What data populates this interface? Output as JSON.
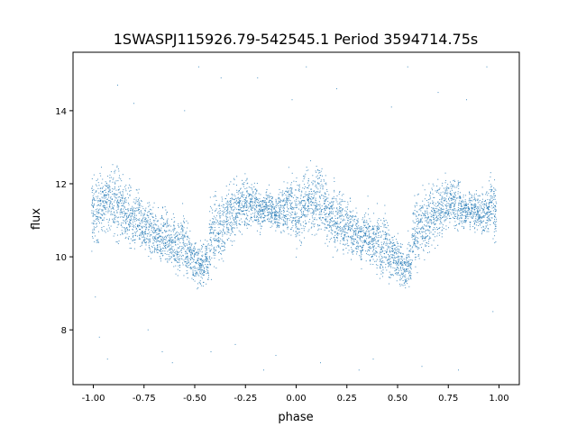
{
  "chart_data": {
    "type": "scatter",
    "title": "1SWASPJ115926.79-542545.1 Period 3594714.75s",
    "xlabel": "phase",
    "ylabel": "flux",
    "xlim": [
      -1.1,
      1.1
    ],
    "ylim": [
      6.5,
      15.6
    ],
    "xticks": [
      "-1.00",
      "-0.75",
      "-0.50",
      "-0.25",
      "0.00",
      "0.25",
      "0.50",
      "0.75",
      "1.00"
    ],
    "xtick_values": [
      -1,
      -0.75,
      -0.5,
      -0.25,
      0,
      0.25,
      0.5,
      0.75,
      1
    ],
    "yticks": [
      "8",
      "10",
      "12",
      "14"
    ],
    "ytick_values": [
      8,
      10,
      12,
      14
    ],
    "grid": false,
    "color": "#1f77b4",
    "repeat_period": 1,
    "streaks_phase_low_high": [
      [
        -1.0,
        9.8,
        12.6
      ],
      [
        -0.98,
        10.0,
        12.5
      ],
      [
        -0.96,
        10.2,
        12.7
      ],
      [
        -0.94,
        10.5,
        12.6
      ],
      [
        -0.92,
        10.2,
        12.8
      ],
      [
        -0.9,
        10.4,
        12.8
      ],
      [
        -0.88,
        10.0,
        13.0
      ],
      [
        -0.86,
        10.3,
        12.5
      ],
      [
        -0.84,
        10.0,
        12.2
      ],
      [
        -0.82,
        9.9,
        12.3
      ],
      [
        -0.8,
        9.8,
        12.0
      ],
      [
        -0.78,
        10.0,
        12.1
      ],
      [
        -0.76,
        9.7,
        11.9
      ],
      [
        -0.74,
        9.8,
        11.8
      ],
      [
        -0.72,
        9.6,
        11.8
      ],
      [
        -0.7,
        9.7,
        11.6
      ],
      [
        -0.68,
        9.5,
        11.5
      ],
      [
        -0.66,
        9.6,
        11.6
      ],
      [
        -0.64,
        9.4,
        11.7
      ],
      [
        -0.62,
        9.5,
        11.4
      ],
      [
        -0.6,
        9.2,
        11.5
      ],
      [
        -0.58,
        9.1,
        11.3
      ],
      [
        -0.56,
        9.2,
        11.8
      ],
      [
        -0.54,
        9.0,
        11.2
      ],
      [
        -0.52,
        9.3,
        10.9
      ],
      [
        -0.5,
        9.0,
        10.8
      ],
      [
        -0.48,
        8.9,
        10.6
      ],
      [
        -0.46,
        9.0,
        10.5
      ],
      [
        -0.44,
        9.0,
        10.8
      ],
      [
        -0.42,
        9.2,
        12.0
      ],
      [
        -0.4,
        9.3,
        12.2
      ],
      [
        -0.38,
        9.5,
        12.1
      ],
      [
        -0.36,
        9.6,
        12.0
      ],
      [
        -0.34,
        9.8,
        12.3
      ],
      [
        -0.32,
        10.0,
        12.2
      ],
      [
        -0.3,
        10.2,
        12.4
      ],
      [
        -0.28,
        10.3,
        12.3
      ],
      [
        -0.26,
        10.4,
        12.5
      ],
      [
        -0.24,
        10.5,
        12.4
      ],
      [
        -0.22,
        10.6,
        12.3
      ],
      [
        -0.2,
        10.4,
        12.5
      ],
      [
        -0.18,
        10.5,
        12.0
      ],
      [
        -0.16,
        10.6,
        11.9
      ],
      [
        -0.14,
        10.7,
        12.1
      ],
      [
        -0.12,
        10.5,
        12.0
      ],
      [
        -0.1,
        10.6,
        11.8
      ],
      [
        -0.08,
        10.4,
        12.0
      ],
      [
        -0.06,
        10.3,
        12.2
      ],
      [
        -0.04,
        10.3,
        12.6
      ],
      [
        -0.02,
        10.0,
        12.6
      ]
    ],
    "outliers": [
      [
        -0.99,
        8.9
      ],
      [
        -0.97,
        7.8
      ],
      [
        -0.93,
        7.2
      ],
      [
        -0.88,
        14.7
      ],
      [
        -0.8,
        14.2
      ],
      [
        -0.73,
        8.0
      ],
      [
        -0.66,
        7.4
      ],
      [
        -0.61,
        7.1
      ],
      [
        -0.55,
        14.0
      ],
      [
        -0.48,
        15.2
      ],
      [
        -0.42,
        7.4
      ],
      [
        -0.37,
        14.9
      ],
      [
        -0.3,
        7.6
      ],
      [
        -0.19,
        14.9
      ],
      [
        -0.16,
        6.9
      ],
      [
        -0.1,
        7.3
      ],
      [
        -0.02,
        14.3
      ],
      [
        0.05,
        15.2
      ],
      [
        0.12,
        7.1
      ],
      [
        0.2,
        14.6
      ],
      [
        0.31,
        6.9
      ],
      [
        0.38,
        7.2
      ],
      [
        0.47,
        14.1
      ],
      [
        0.55,
        15.2
      ],
      [
        0.62,
        7.0
      ],
      [
        0.7,
        14.5
      ],
      [
        0.8,
        6.9
      ],
      [
        0.84,
        14.3
      ],
      [
        0.94,
        15.2
      ],
      [
        0.97,
        8.5
      ]
    ]
  }
}
